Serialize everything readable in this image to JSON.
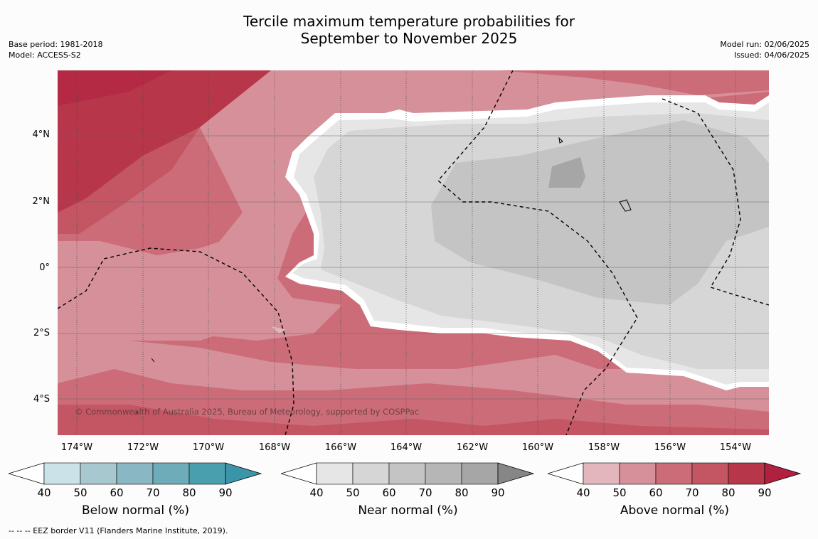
{
  "title_line1": "Tercile maximum temperature probabilities for",
  "title_line2": "September to November 2025",
  "meta_left": {
    "base_period": "Base period: 1981-2018",
    "model": "Model: ACCESS-S2"
  },
  "meta_right": {
    "model_run": "Model run: 02/06/2025",
    "issued": "Issued: 04/06/2025"
  },
  "map": {
    "copyright": "© Commonwealth of Australia 2025, Bureau of Meteorology, supported by COSPPac",
    "lat_ticks": [
      "4°N",
      "2°N",
      "0°",
      "2°S",
      "4°S"
    ],
    "lon_ticks": [
      "174°W",
      "172°W",
      "170°W",
      "168°W",
      "166°W",
      "164°W",
      "162°W",
      "160°W",
      "158°W",
      "156°W",
      "154°W"
    ]
  },
  "colorbars": [
    {
      "label": "Below normal (%)",
      "ticks": [
        "40",
        "50",
        "60",
        "70",
        "80",
        "90"
      ],
      "colors": [
        "#cbe2e8",
        "#a8c8cf",
        "#89b8c4",
        "#6eacb9",
        "#4a9fae",
        "#3a95a8"
      ]
    },
    {
      "label": "Near normal (%)",
      "ticks": [
        "40",
        "50",
        "60",
        "70",
        "80",
        "90"
      ],
      "colors": [
        "#e6e6e6",
        "#d6d6d6",
        "#c4c4c4",
        "#b6b6b6",
        "#a6a6a6",
        "#868686"
      ]
    },
    {
      "label": "Above normal (%)",
      "ticks": [
        "40",
        "50",
        "60",
        "70",
        "80",
        "90"
      ],
      "colors": [
        "#e3b5bc",
        "#d6909a",
        "#cc6c78",
        "#c45563",
        "#b8364a",
        "#b02040"
      ]
    }
  ],
  "footer": "--  --  -- EEZ border V11 (Flanders Marine Institute, 2019)."
}
